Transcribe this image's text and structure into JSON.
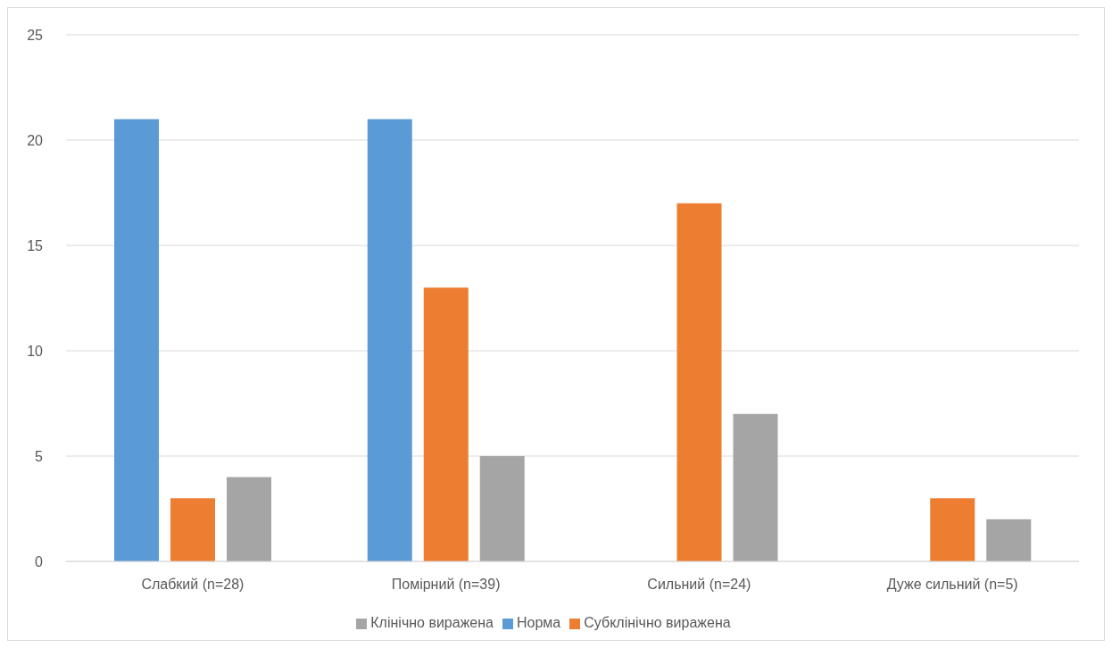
{
  "chart_data": {
    "type": "bar",
    "categories": [
      "Слабкий (n=28)",
      "Помірний (n=39)",
      "Сильний (n=24)",
      "Дуже сильний (n=5)"
    ],
    "series": [
      {
        "name": "Норма",
        "color": "#5b9bd5",
        "values": [
          21,
          21,
          0,
          0
        ]
      },
      {
        "name": "Субклінічно виражена",
        "color": "#ed7d31",
        "values": [
          3,
          13,
          17,
          3
        ]
      },
      {
        "name": "Клінічно виражена",
        "color": "#a5a5a5",
        "values": [
          4,
          5,
          7,
          2
        ]
      }
    ],
    "ylim": [
      0,
      25
    ],
    "yticks": [
      0,
      5,
      10,
      15,
      20,
      25
    ],
    "grid": "y",
    "legend": "bottom"
  }
}
